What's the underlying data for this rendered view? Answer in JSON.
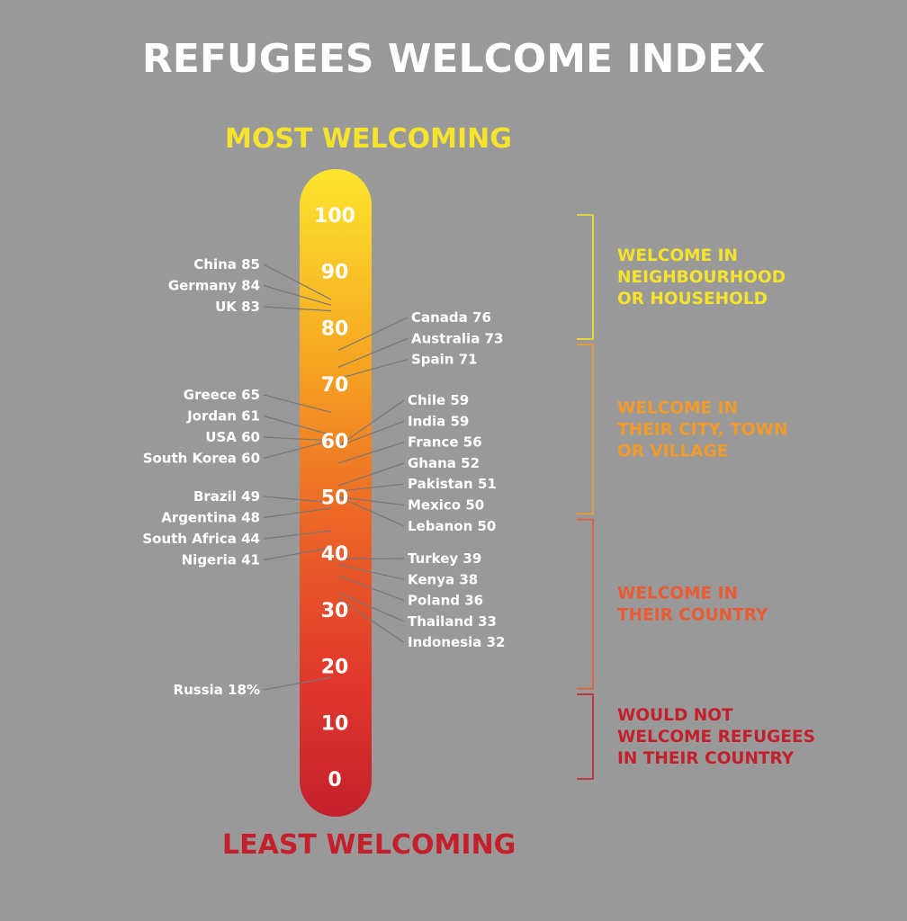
{
  "title": "REFUGEES WELCOME INDEX",
  "top_label": "MOST WELCOMING",
  "bottom_label": "LEAST WELCOMING",
  "colors": {
    "background": "#999999",
    "top": "#fde52e",
    "bottom": "#c4202c",
    "band_neighbourhood": "#f6e32c",
    "band_city": "#f29a2a",
    "band_country": "#ea5b32",
    "band_not": "#c4202c"
  },
  "chart_data": {
    "type": "thermometer",
    "ylim": [
      0,
      100
    ],
    "ticks": [
      "100",
      "90",
      "80",
      "70",
      "60",
      "50",
      "40",
      "30",
      "20",
      "10",
      "0"
    ],
    "left": [
      {
        "name": "China",
        "value": 85,
        "label": "85"
      },
      {
        "name": "Germany",
        "value": 84,
        "label": "84"
      },
      {
        "name": "UK",
        "value": 83,
        "label": "83"
      },
      {
        "name": "Greece",
        "value": 65,
        "label": "65"
      },
      {
        "name": "Jordan",
        "value": 61,
        "label": "61"
      },
      {
        "name": "USA",
        "value": 60,
        "label": "60"
      },
      {
        "name": "South Korea",
        "value": 60,
        "label": "60"
      },
      {
        "name": "Brazil",
        "value": 49,
        "label": "49"
      },
      {
        "name": "Argentina",
        "value": 48,
        "label": "48"
      },
      {
        "name": "South Africa",
        "value": 44,
        "label": "44"
      },
      {
        "name": "Nigeria",
        "value": 41,
        "label": "41"
      },
      {
        "name": "Russia",
        "value": 18,
        "label": "18%"
      }
    ],
    "right": [
      {
        "name": "Canada",
        "value": 76,
        "label": "76"
      },
      {
        "name": "Australia",
        "value": 73,
        "label": "73"
      },
      {
        "name": "Spain",
        "value": 71,
        "label": "71"
      },
      {
        "name": "Chile",
        "value": 59,
        "label": "59"
      },
      {
        "name": "India",
        "value": 59,
        "label": "59"
      },
      {
        "name": "France",
        "value": 56,
        "label": "56"
      },
      {
        "name": "Ghana",
        "value": 52,
        "label": "52"
      },
      {
        "name": "Pakistan",
        "value": 51,
        "label": "51"
      },
      {
        "name": "Mexico",
        "value": 50,
        "label": "50"
      },
      {
        "name": "Lebanon",
        "value": 50,
        "label": "50"
      },
      {
        "name": "Turkey",
        "value": 39,
        "label": "39"
      },
      {
        "name": "Kenya",
        "value": 38,
        "label": "38"
      },
      {
        "name": "Poland",
        "value": 36,
        "label": "36"
      },
      {
        "name": "Thailand",
        "value": 33,
        "label": "33"
      },
      {
        "name": "Indonesia",
        "value": 32,
        "label": "32"
      }
    ],
    "bands": [
      {
        "lines": [
          "WELCOME IN",
          "NEIGHBOURHOOD",
          "OR HOUSEHOLD"
        ],
        "range": [
          78,
          100
        ],
        "color": "#f6e32c"
      },
      {
        "lines": [
          "WELCOME IN",
          "THEIR CITY, TOWN",
          "OR VILLAGE"
        ],
        "range": [
          47,
          77
        ],
        "color": "#f29a2a"
      },
      {
        "lines": [
          "WELCOME IN",
          "THEIR COUNTRY"
        ],
        "range": [
          16,
          46
        ],
        "color": "#ea5b32"
      },
      {
        "lines": [
          "WOULD NOT",
          "WELCOME REFUGEES",
          "IN THEIR COUNTRY"
        ],
        "range": [
          0,
          15
        ],
        "color": "#c4202c"
      }
    ]
  }
}
